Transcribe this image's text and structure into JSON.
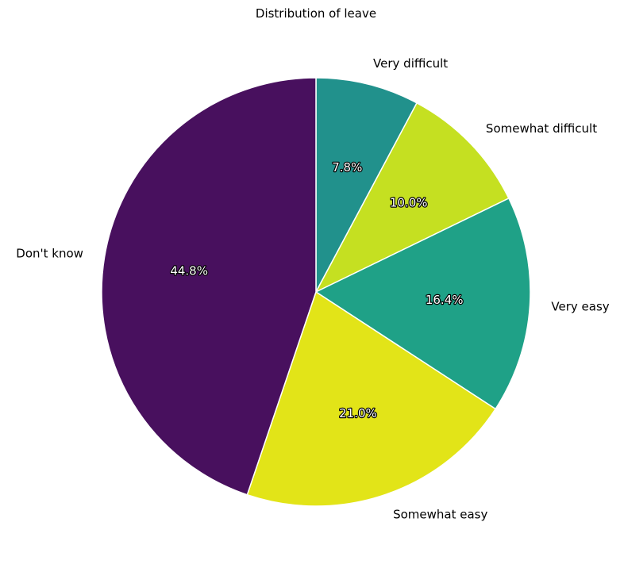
{
  "chart_data": {
    "type": "pie",
    "title": "Distribution of leave",
    "start_angle_deg": 90,
    "direction": "clockwise",
    "slices": [
      {
        "label": "Very difficult",
        "value": 7.8,
        "pct_label": "7.8%",
        "color": "#21918c"
      },
      {
        "label": "Somewhat difficult",
        "value": 10.0,
        "pct_label": "10.0%",
        "color": "#c5e021"
      },
      {
        "label": "Very easy",
        "value": 16.4,
        "pct_label": "16.4%",
        "color": "#1fa187"
      },
      {
        "label": "Somewhat easy",
        "value": 21.0,
        "pct_label": "21.0%",
        "color": "#e2e418"
      },
      {
        "label": "Don't know",
        "value": 44.8,
        "pct_label": "44.8%",
        "color": "#48105e"
      }
    ]
  }
}
